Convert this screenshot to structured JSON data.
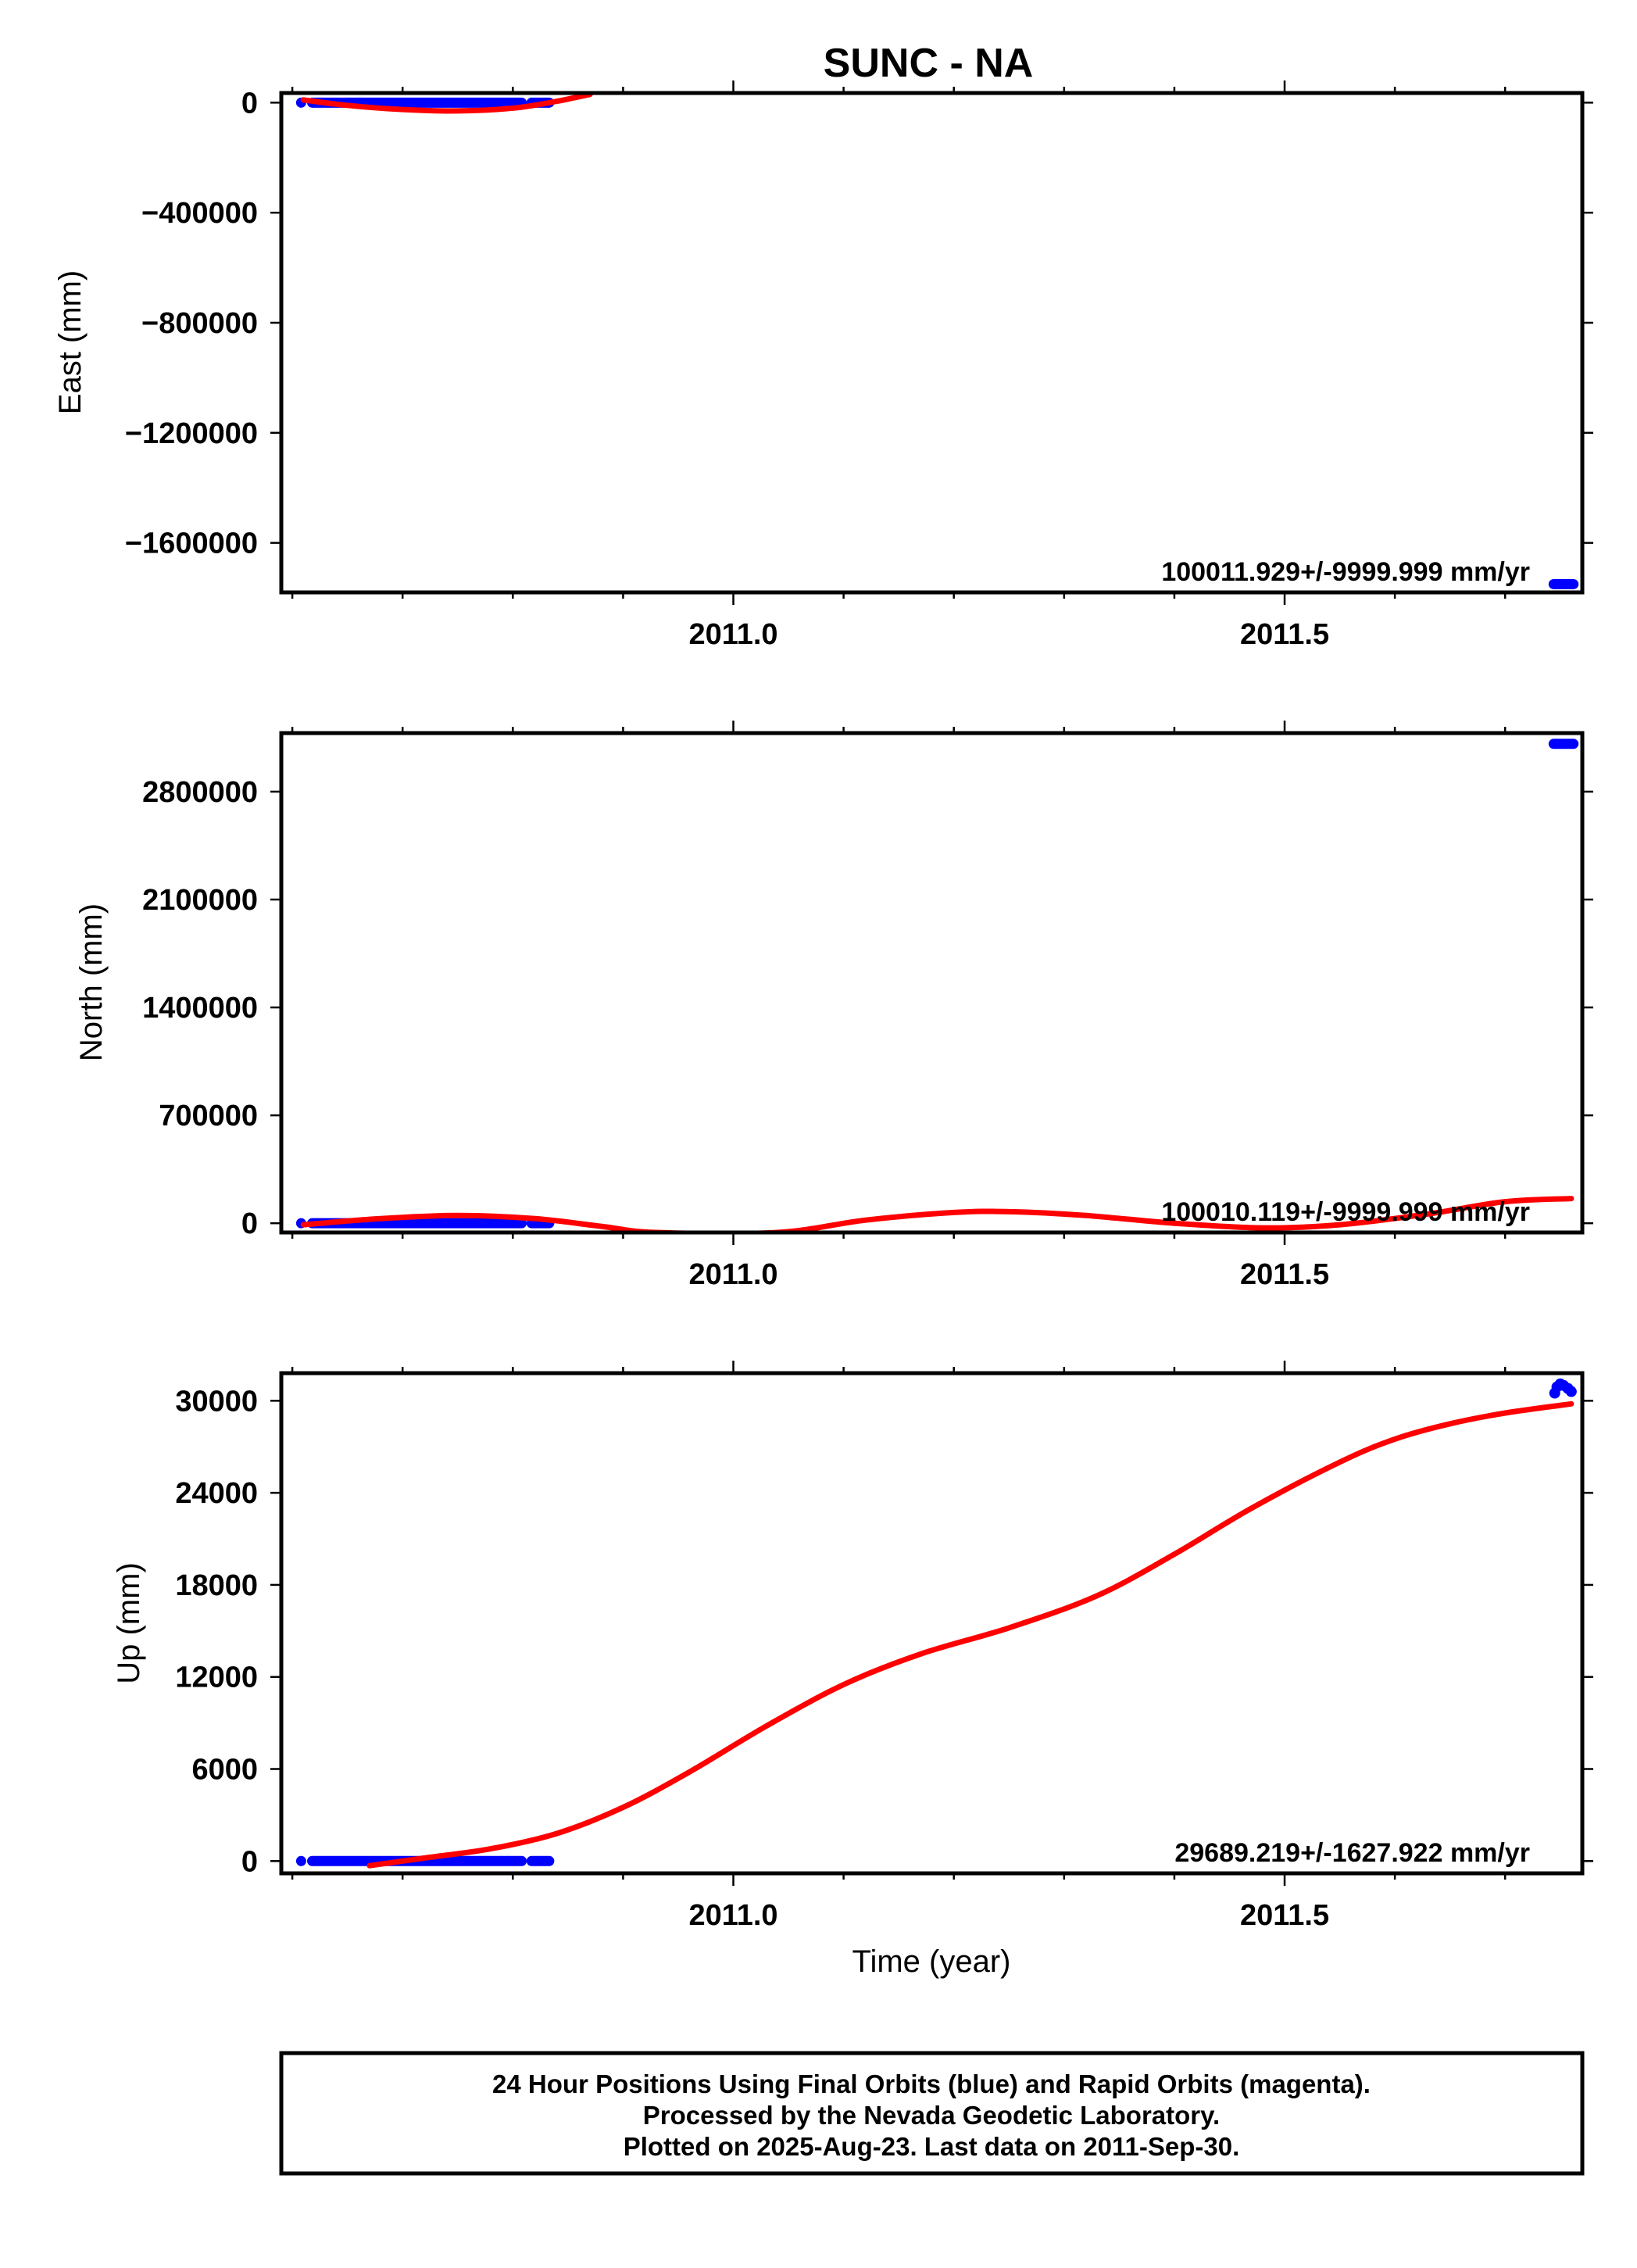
{
  "colors": {
    "final_orbits": "#0000ff",
    "fit_line": "#ff0000",
    "frame": "#000000"
  },
  "chart_data": [
    {
      "type": "scatter",
      "panel": "east",
      "title": "SUNC - NA",
      "xlabel": "",
      "ylabel": "East (mm)",
      "xlim": [
        2010.59,
        2011.77
      ],
      "ylim": [
        -1780000,
        35000
      ],
      "x_ticks": [
        2011.0,
        2011.5
      ],
      "x_tick_labels": [
        "2011.0",
        "2011.5"
      ],
      "x_minor_ticks": [
        2010.6,
        2010.7,
        2010.8,
        2010.9,
        2011.1,
        2011.2,
        2011.3,
        2011.4,
        2011.6,
        2011.7
      ],
      "y_ticks": [
        0,
        -400000,
        -800000,
        -1200000,
        -1600000
      ],
      "y_tick_labels": [
        "0",
        "−400000",
        "−800000",
        "−1200000",
        "−1600000"
      ],
      "rate_label": "100011.929+/-9999.999 mm/yr",
      "series": [
        {
          "style": "points",
          "segments": [
            {
              "x_start": 2010.608,
              "x_end": 2010.608,
              "y": 0
            },
            {
              "x_start": 2010.618,
              "x_end": 2010.808,
              "y": 0
            },
            {
              "x_start": 2010.817,
              "x_end": 2010.833,
              "y": 0
            },
            {
              "x_start": 2011.744,
              "x_end": 2011.762,
              "y": -1750000
            }
          ]
        },
        {
          "style": "line",
          "x": [
            2010.61,
            2010.65,
            2010.7,
            2010.75,
            2010.8,
            2010.84,
            2010.87
          ],
          "y": [
            10000,
            -10000,
            -25000,
            -30000,
            -20000,
            5000,
            30000
          ]
        }
      ]
    },
    {
      "type": "scatter",
      "panel": "north",
      "xlabel": "",
      "ylabel": "North (mm)",
      "xlim": [
        2010.59,
        2011.77
      ],
      "ylim": [
        -60000,
        3180000
      ],
      "x_ticks": [
        2011.0,
        2011.5
      ],
      "x_tick_labels": [
        "2011.0",
        "2011.5"
      ],
      "x_minor_ticks": [
        2010.6,
        2010.7,
        2010.8,
        2010.9,
        2011.1,
        2011.2,
        2011.3,
        2011.4,
        2011.6,
        2011.7
      ],
      "y_ticks": [
        0,
        700000,
        1400000,
        2100000,
        2800000
      ],
      "y_tick_labels": [
        "0",
        "700000",
        "1400000",
        "2100000",
        "2800000"
      ],
      "rate_label": "100010.119+/-9999.999 mm/yr",
      "series": [
        {
          "style": "points",
          "segments": [
            {
              "x_start": 2010.608,
              "x_end": 2010.608,
              "y": 0
            },
            {
              "x_start": 2010.618,
              "x_end": 2010.808,
              "y": 0
            },
            {
              "x_start": 2010.817,
              "x_end": 2010.833,
              "y": 0
            },
            {
              "x_start": 2011.744,
              "x_end": 2011.762,
              "y": 3110000
            }
          ]
        },
        {
          "style": "line",
          "x": [
            2010.61,
            2010.68,
            2010.75,
            2010.82,
            2010.88,
            2010.93,
            2011.04,
            2011.12,
            2011.2,
            2011.25,
            2011.32,
            2011.4,
            2011.48,
            2011.55,
            2011.63,
            2011.7,
            2011.76
          ],
          "y": [
            -10000,
            30000,
            50000,
            30000,
            -20000,
            -60000,
            -60000,
            20000,
            70000,
            75000,
            50000,
            0,
            -30000,
            -10000,
            60000,
            140000,
            160000
          ]
        }
      ]
    },
    {
      "type": "scatter",
      "panel": "up",
      "xlabel": "Time (year)",
      "ylabel": "Up (mm)",
      "xlim": [
        2010.59,
        2011.77
      ],
      "ylim": [
        -800,
        31800
      ],
      "x_ticks": [
        2011.0,
        2011.5
      ],
      "x_tick_labels": [
        "2011.0",
        "2011.5"
      ],
      "x_minor_ticks": [
        2010.6,
        2010.7,
        2010.8,
        2010.9,
        2011.1,
        2011.2,
        2011.3,
        2011.4,
        2011.6,
        2011.7
      ],
      "y_ticks": [
        0,
        6000,
        12000,
        18000,
        24000,
        30000
      ],
      "y_tick_labels": [
        "0",
        "6000",
        "12000",
        "18000",
        "24000",
        "30000"
      ],
      "rate_label": "29689.219+/-1627.922 mm/yr",
      "series": [
        {
          "style": "points",
          "segments": [
            {
              "x_start": 2010.608,
              "x_end": 2010.608,
              "y": 0
            },
            {
              "x_start": 2010.618,
              "x_end": 2010.808,
              "y": 0
            },
            {
              "x_start": 2010.817,
              "x_end": 2010.833,
              "y": 0
            }
          ],
          "cluster": {
            "x": [
              2011.745,
              2011.747,
              2011.75,
              2011.753,
              2011.757,
              2011.76
            ],
            "y": [
              30500,
              30900,
              31100,
              31000,
              30800,
              30600
            ]
          }
        },
        {
          "style": "line",
          "x": [
            2010.67,
            2010.72,
            2010.78,
            2010.84,
            2010.9,
            2010.96,
            2011.03,
            2011.1,
            2011.17,
            2011.25,
            2011.33,
            2011.4,
            2011.47,
            2011.55,
            2011.6,
            2011.65,
            2011.7,
            2011.76
          ],
          "y": [
            -300,
            200,
            800,
            1800,
            3500,
            5800,
            8800,
            11500,
            13500,
            15200,
            17300,
            20000,
            23000,
            26000,
            27500,
            28500,
            29200,
            29800
          ]
        }
      ]
    }
  ],
  "caption": {
    "line1": "24 Hour Positions Using Final Orbits (blue) and Rapid Orbits (magenta).",
    "line2": "Processed by the Nevada Geodetic Laboratory.",
    "line3": "Plotted on 2025-Aug-23. Last data on 2011-Sep-30."
  }
}
